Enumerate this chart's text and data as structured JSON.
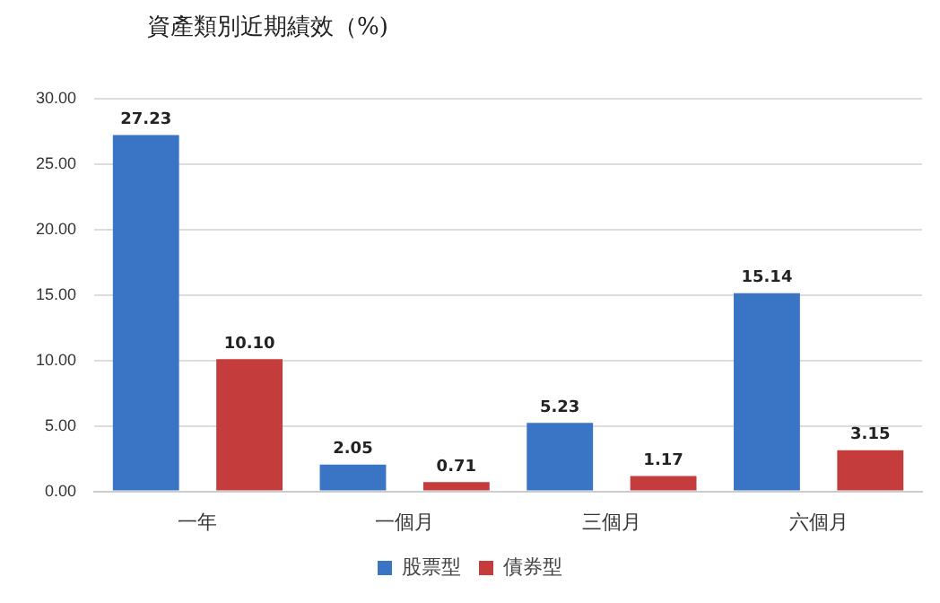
{
  "chart_data": {
    "type": "bar",
    "title": "資產類別近期績效（%)",
    "categories": [
      "一年",
      "一個月",
      "三個月",
      "六個月"
    ],
    "series": [
      {
        "name": "股票型",
        "color": "#3a74c4",
        "values": [
          27.23,
          2.05,
          5.23,
          15.14
        ],
        "value_labels": [
          "27.23",
          "2.05",
          "5.23",
          "15.14"
        ]
      },
      {
        "name": "債券型",
        "color": "#c43c3c",
        "values": [
          10.1,
          0.71,
          1.17,
          3.15
        ],
        "value_labels": [
          "10.10",
          "0.71",
          "1.17",
          "3.15"
        ]
      }
    ],
    "ylim": [
      0,
      30
    ],
    "yticks": [
      {
        "value": 0,
        "label": "0.00"
      },
      {
        "value": 5,
        "label": "5.00"
      },
      {
        "value": 10,
        "label": "10.00"
      },
      {
        "value": 15,
        "label": "15.00"
      },
      {
        "value": 20,
        "label": "20.00"
      },
      {
        "value": 25,
        "label": "25.00"
      },
      {
        "value": 30,
        "label": "30.00"
      }
    ],
    "grid": "y",
    "legend": "bottom"
  }
}
